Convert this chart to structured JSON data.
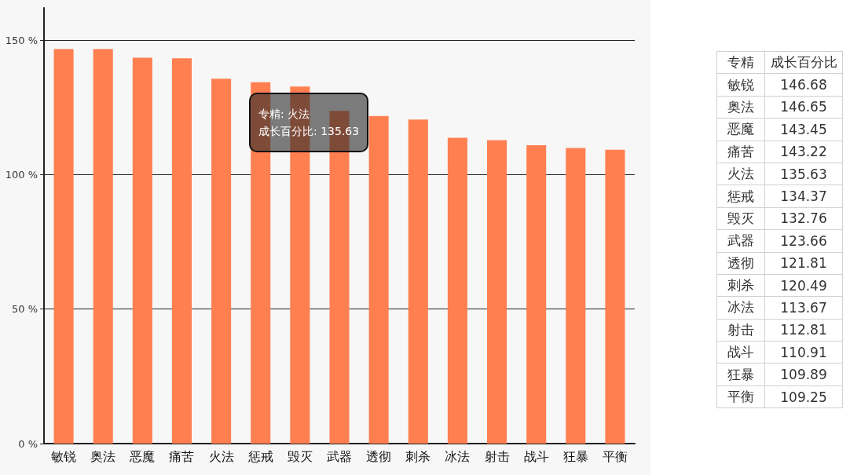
{
  "chart_data": {
    "type": "bar",
    "categories": [
      "敏锐",
      "奥法",
      "恶魔",
      "痛苦",
      "火法",
      "惩戒",
      "毁灭",
      "武器",
      "透彻",
      "刺杀",
      "冰法",
      "射击",
      "战斗",
      "狂暴",
      "平衡"
    ],
    "values": [
      146.68,
      146.65,
      143.45,
      143.22,
      135.63,
      134.37,
      132.76,
      123.66,
      121.81,
      120.49,
      113.67,
      112.81,
      110.91,
      109.89,
      109.25
    ],
    "color": "#ff7f50",
    "ylim": [
      0,
      162
    ],
    "yticks": [
      {
        "value": 0,
        "label": "0 %"
      },
      {
        "value": 50,
        "label": "50 %"
      },
      {
        "value": 100,
        "label": "100 %"
      },
      {
        "value": 150,
        "label": "150 %"
      }
    ],
    "grid": "y",
    "annotations": [
      "专精: 火法",
      "成长百分比: 135.63",
      "专精",
      "成长百分比",
      "146.68",
      "146.65",
      "143.45",
      "143.22",
      "135.63",
      "134.37",
      "132.76",
      "123.66",
      "121.81",
      "120.49",
      "113.67",
      "112.81",
      "110.91",
      "109.89",
      "109.25"
    ]
  }
}
